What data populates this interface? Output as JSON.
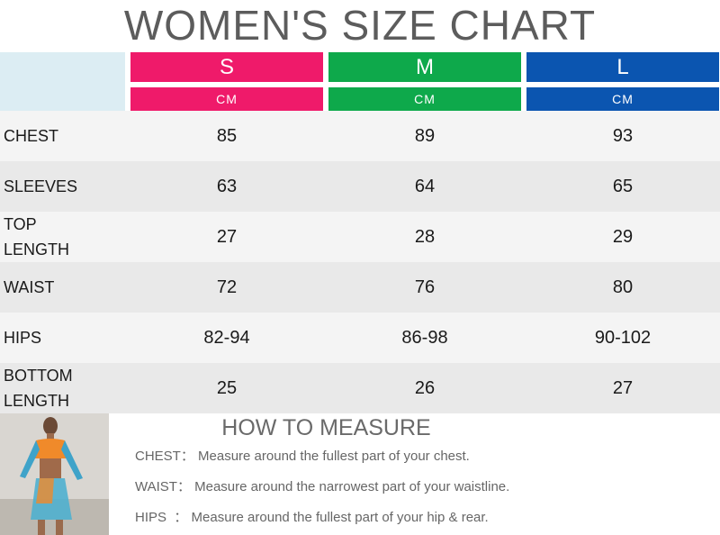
{
  "title": "WOMEN'S SIZE CHART",
  "colors": {
    "s": "#ef1a6a",
    "m": "#0ea94b",
    "l": "#0b55b0",
    "header_blank": "#dcedf3"
  },
  "sizes": [
    {
      "label": "S",
      "unit": "CM"
    },
    {
      "label": "M",
      "unit": "CM"
    },
    {
      "label": "L",
      "unit": "CM"
    }
  ],
  "rows": [
    {
      "label": "CHEST",
      "values": [
        "85",
        "89",
        "93"
      ]
    },
    {
      "label": "SLEEVES",
      "values": [
        "63",
        "64",
        "65"
      ]
    },
    {
      "label": "TOP\nLENGTH",
      "values": [
        "27",
        "28",
        "29"
      ]
    },
    {
      "label": "WAIST",
      "values": [
        "72",
        "76",
        "80"
      ]
    },
    {
      "label": "HIPS",
      "values": [
        "82-94",
        "86-98",
        "90-102"
      ]
    },
    {
      "label": "BOTTOM\nLENGTH",
      "values": [
        "25",
        "26",
        "27"
      ]
    }
  ],
  "measure": {
    "title": "HOW TO MEASURE",
    "lines": [
      {
        "key": "CHEST：",
        "text": "Measure around the fullest part of your chest."
      },
      {
        "key": "WAIST：",
        "text": "Measure around the narrowest part of your waistline."
      },
      {
        "key": "HIPS  ：",
        "text": "Measure around the fullest part of your hip & rear."
      }
    ]
  }
}
